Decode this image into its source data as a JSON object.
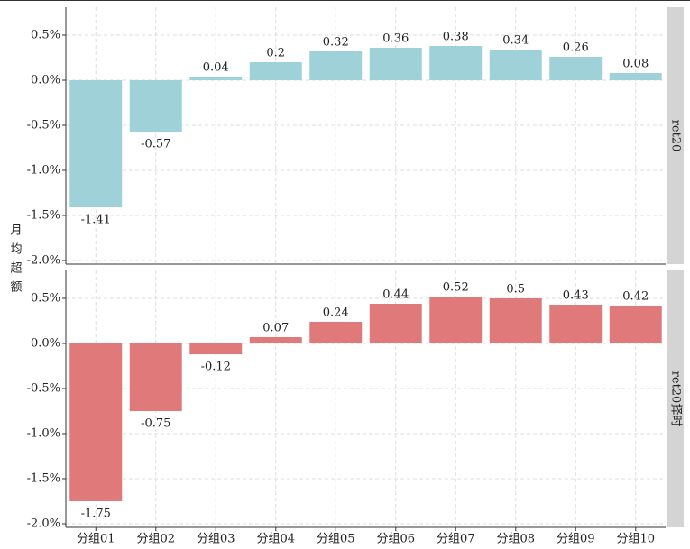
{
  "chart_data": [
    {
      "type": "bar",
      "facet_label": "ret20",
      "ylabel": "月均超额",
      "color": "#9fd1d8",
      "values": [
        -1.41,
        -0.57,
        0.04,
        0.2,
        0.32,
        0.36,
        0.38,
        0.34,
        0.26,
        0.08
      ],
      "ylim": [
        -2.04,
        0.81
      ],
      "yticks": [
        {
          "value": -2.0,
          "label": "-2.0%"
        },
        {
          "value": -1.5,
          "label": "-1.5%"
        },
        {
          "value": -1.0,
          "label": "-1.0%"
        },
        {
          "value": -0.5,
          "label": "-0.5%"
        },
        {
          "value": 0.0,
          "label": "0.0%"
        },
        {
          "value": 0.5,
          "label": "0.5%"
        }
      ],
      "grid": true
    },
    {
      "type": "bar",
      "facet_label": "ret20择时",
      "color": "#e07a7a",
      "categories": [
        "分组01",
        "分组02",
        "分组03",
        "分组04",
        "分组05",
        "分组06",
        "分组07",
        "分组08",
        "分组09",
        "分组10"
      ],
      "values": [
        -1.75,
        -0.75,
        -0.12,
        0.07,
        0.24,
        0.44,
        0.52,
        0.5,
        0.43,
        0.42
      ],
      "ylim": [
        -2.04,
        0.81
      ],
      "yticks": [
        {
          "value": -2.0,
          "label": "-2.0%"
        },
        {
          "value": -1.5,
          "label": "-1.5%"
        },
        {
          "value": -1.0,
          "label": "-1.0%"
        },
        {
          "value": -0.5,
          "label": "-0.5%"
        },
        {
          "value": 0.0,
          "label": "0.0%"
        },
        {
          "value": 0.5,
          "label": "0.5%"
        }
      ],
      "grid": true
    }
  ]
}
